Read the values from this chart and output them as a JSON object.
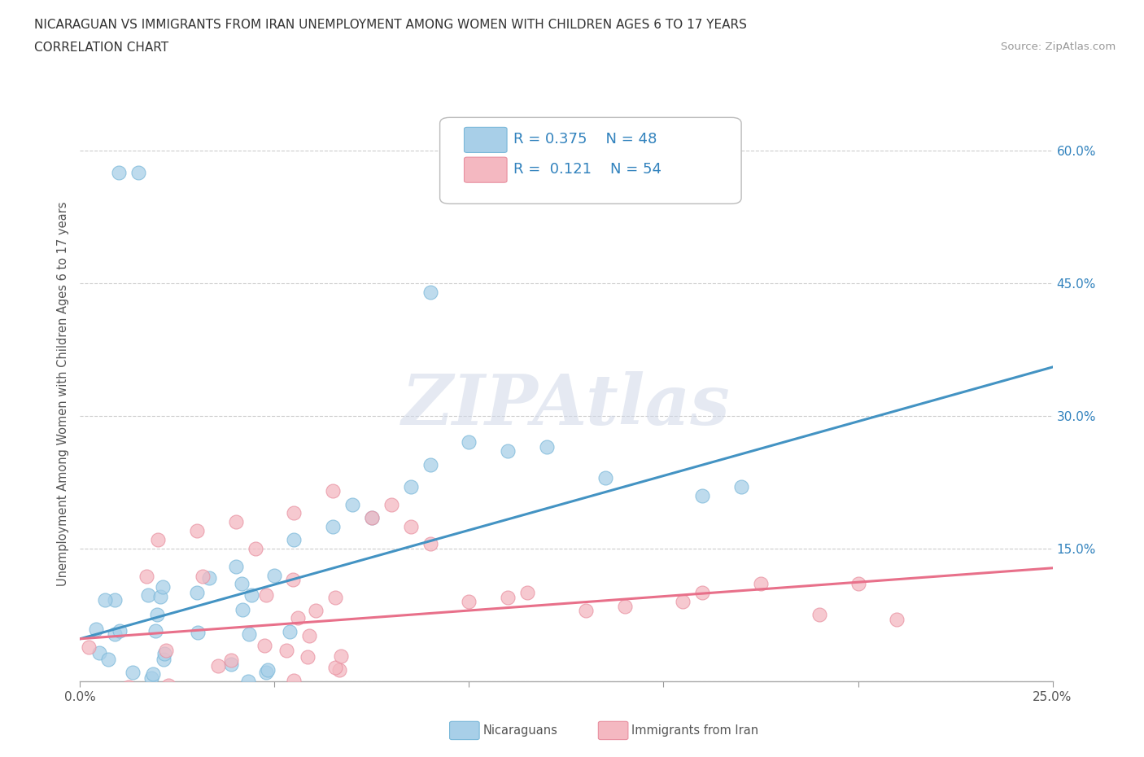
{
  "title_line1": "NICARAGUAN VS IMMIGRANTS FROM IRAN UNEMPLOYMENT AMONG WOMEN WITH CHILDREN AGES 6 TO 17 YEARS",
  "title_line2": "CORRELATION CHART",
  "source_text": "Source: ZipAtlas.com",
  "ylabel": "Unemployment Among Women with Children Ages 6 to 17 years",
  "xlim": [
    0.0,
    0.25
  ],
  "ylim": [
    0.0,
    0.65
  ],
  "xticks": [
    0.0,
    0.05,
    0.1,
    0.15,
    0.2,
    0.25
  ],
  "xtick_labels": [
    "0.0%",
    "",
    "",
    "",
    "",
    "25.0%"
  ],
  "ytick_positions": [
    0.0,
    0.15,
    0.3,
    0.45,
    0.6
  ],
  "ytick_labels_left": [
    "",
    "",
    "",
    "",
    ""
  ],
  "ytick_labels_right": [
    "",
    "15.0%",
    "30.0%",
    "45.0%",
    "60.0%"
  ],
  "blue_scatter": "#a8cfe8",
  "blue_edge": "#7ab8d9",
  "pink_scatter": "#f4b8c1",
  "pink_edge": "#e890a0",
  "blue_line": "#4393c3",
  "pink_line": "#e8708a",
  "R_blue": 0.375,
  "N_blue": 48,
  "R_pink": 0.121,
  "N_pink": 54,
  "legend_label_blue": "Nicaraguans",
  "legend_label_pink": "Immigrants from Iran",
  "watermark": "ZIPAtlas",
  "grid_color": "#cccccc",
  "blue_trend_x": [
    0.0,
    0.25
  ],
  "blue_trend_y": [
    0.048,
    0.355
  ],
  "pink_trend_x": [
    0.0,
    0.25
  ],
  "pink_trend_y": [
    0.048,
    0.128
  ],
  "right_yaxis_color": "#3182bd",
  "scatter_size": 150
}
